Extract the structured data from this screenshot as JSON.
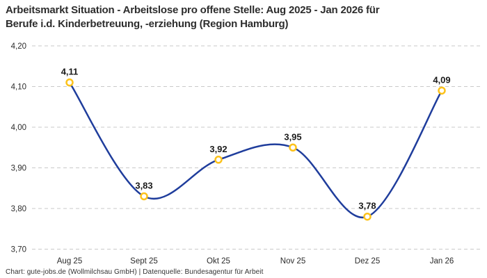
{
  "header": {
    "title_lines": [
      "Arbeitsmarkt Situation - Arbeitslose pro offene Stelle: Aug 2025 - Jan 2026 für",
      "Berufe i.d. Kinderbetreuung, -erziehung (Region Hamburg)"
    ]
  },
  "footer": {
    "credit": "Chart: gute-jobs.de (Wollmilchsau GmbH) | Datenquelle: Bundesagentur für Arbeit"
  },
  "chart_data": {
    "type": "line",
    "title": "Arbeitsmarkt Situation - Arbeitslose pro offene Stelle: Aug 2025 - Jan 2026 für Berufe i.d. Kinderbetreuung, -erziehung (Region Hamburg)",
    "categories": [
      "Aug 25",
      "Sept 25",
      "Okt 25",
      "Nov 25",
      "Dez 25",
      "Jan 26"
    ],
    "values": [
      4.11,
      3.83,
      3.92,
      3.95,
      3.78,
      4.09
    ],
    "point_labels": [
      "4,11",
      "3,83",
      "3,92",
      "3,95",
      "3,78",
      "4,09"
    ],
    "y_ticks": [
      {
        "v": 4.2,
        "label": "4,20"
      },
      {
        "v": 4.1,
        "label": "4,10"
      },
      {
        "v": 4.0,
        "label": "4,00"
      },
      {
        "v": 3.9,
        "label": "3,90"
      },
      {
        "v": 3.8,
        "label": "3,80"
      },
      {
        "v": 3.7,
        "label": "3,70"
      }
    ],
    "ylim": [
      3.7,
      4.2
    ],
    "xlabel": "",
    "ylabel": "",
    "grid": "horizontal-dashed",
    "legend": "none",
    "line_color": "#1f3d9c",
    "marker_color": "#fcc21b",
    "marker_fill": "#ffffff",
    "grid_color": "#c9c9c9",
    "title_color": "#2d2d2d"
  }
}
